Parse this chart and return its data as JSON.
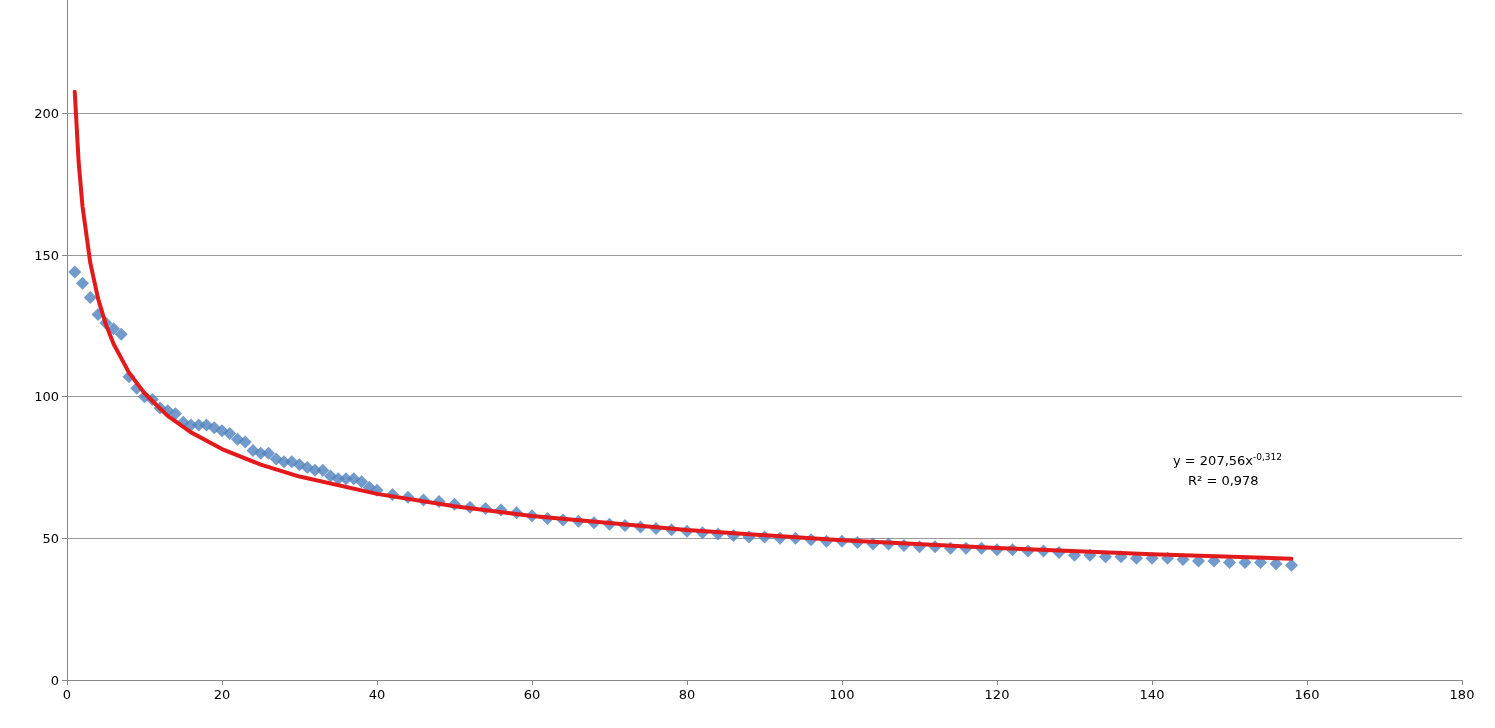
{
  "chart_data": {
    "type": "scatter",
    "xlim": [
      0,
      180
    ],
    "xticks": [
      0,
      20,
      40,
      60,
      80,
      100,
      120,
      140,
      160,
      180
    ],
    "ylim": [
      0,
      240
    ],
    "yticks": [
      0,
      50,
      100,
      150,
      200
    ],
    "grid": "y",
    "marker": "diamond",
    "annotations": [
      "y = 207,56x$^{-0,312}$",
      "R² = 0,978"
    ],
    "series": [
      {
        "color": "#4f81bd",
        "x": [
          1,
          2,
          3,
          4,
          5,
          6,
          7,
          8,
          9,
          10,
          11,
          12,
          13,
          14,
          15,
          16,
          17,
          18,
          19,
          20,
          21,
          22,
          23,
          24,
          25,
          26,
          27,
          28,
          29,
          30,
          31,
          32,
          33,
          34,
          35,
          36,
          37,
          38,
          39,
          40,
          42,
          44,
          46,
          48,
          50,
          52,
          54,
          56,
          58,
          60,
          62,
          64,
          66,
          68,
          70,
          72,
          74,
          76,
          78,
          80,
          82,
          84,
          86,
          88,
          90,
          92,
          94,
          96,
          98,
          100,
          102,
          104,
          106,
          108,
          110,
          112,
          114,
          116,
          118,
          120,
          122,
          124,
          126,
          128,
          130,
          132,
          134,
          136,
          138,
          140,
          142,
          144,
          146,
          148,
          150,
          152,
          154,
          156,
          158
        ],
        "values": [
          144,
          140,
          135,
          129,
          126,
          124,
          122,
          107,
          103,
          100,
          99,
          96,
          95,
          94,
          91,
          90,
          90,
          90,
          89,
          88,
          87,
          85,
          84,
          81,
          80,
          80,
          78,
          77,
          77,
          76,
          75,
          74,
          74,
          72,
          71,
          71,
          71,
          70,
          68,
          67,
          65.5,
          64.5,
          63.5,
          63,
          62,
          61,
          60.5,
          60,
          59,
          58,
          57,
          56.5,
          56,
          55.5,
          55,
          54.5,
          54,
          53.5,
          53,
          52.5,
          52,
          51.5,
          51,
          50.5,
          50.5,
          50,
          50,
          49.5,
          49,
          49,
          48.5,
          48,
          48,
          47.5,
          47,
          47,
          46.5,
          46.5,
          46.5,
          46,
          46,
          45.5,
          45.5,
          45,
          44,
          44,
          43.5,
          43.5,
          43,
          43,
          43,
          42.5,
          42,
          42,
          41.5,
          41.5,
          41.5,
          41,
          40.5
        ]
      },
      {
        "type": "line",
        "color": "#e31a1c",
        "marker": "none",
        "line_style": "solid",
        "x": [
          1,
          1.5,
          2,
          3,
          4,
          5,
          6,
          8,
          10,
          13,
          16,
          20,
          25,
          30,
          40,
          50,
          60,
          80,
          100,
          120,
          140,
          158
        ],
        "values": [
          207.6,
          182.9,
          167.2,
          147.3,
          134.7,
          125.6,
          118.7,
          108.5,
          101.2,
          93.2,
          87.4,
          81.5,
          76.0,
          71.8,
          65.7,
          61.3,
          57.9,
          52.9,
          49.3,
          46.6,
          44.4,
          42.8
        ]
      }
    ]
  }
}
